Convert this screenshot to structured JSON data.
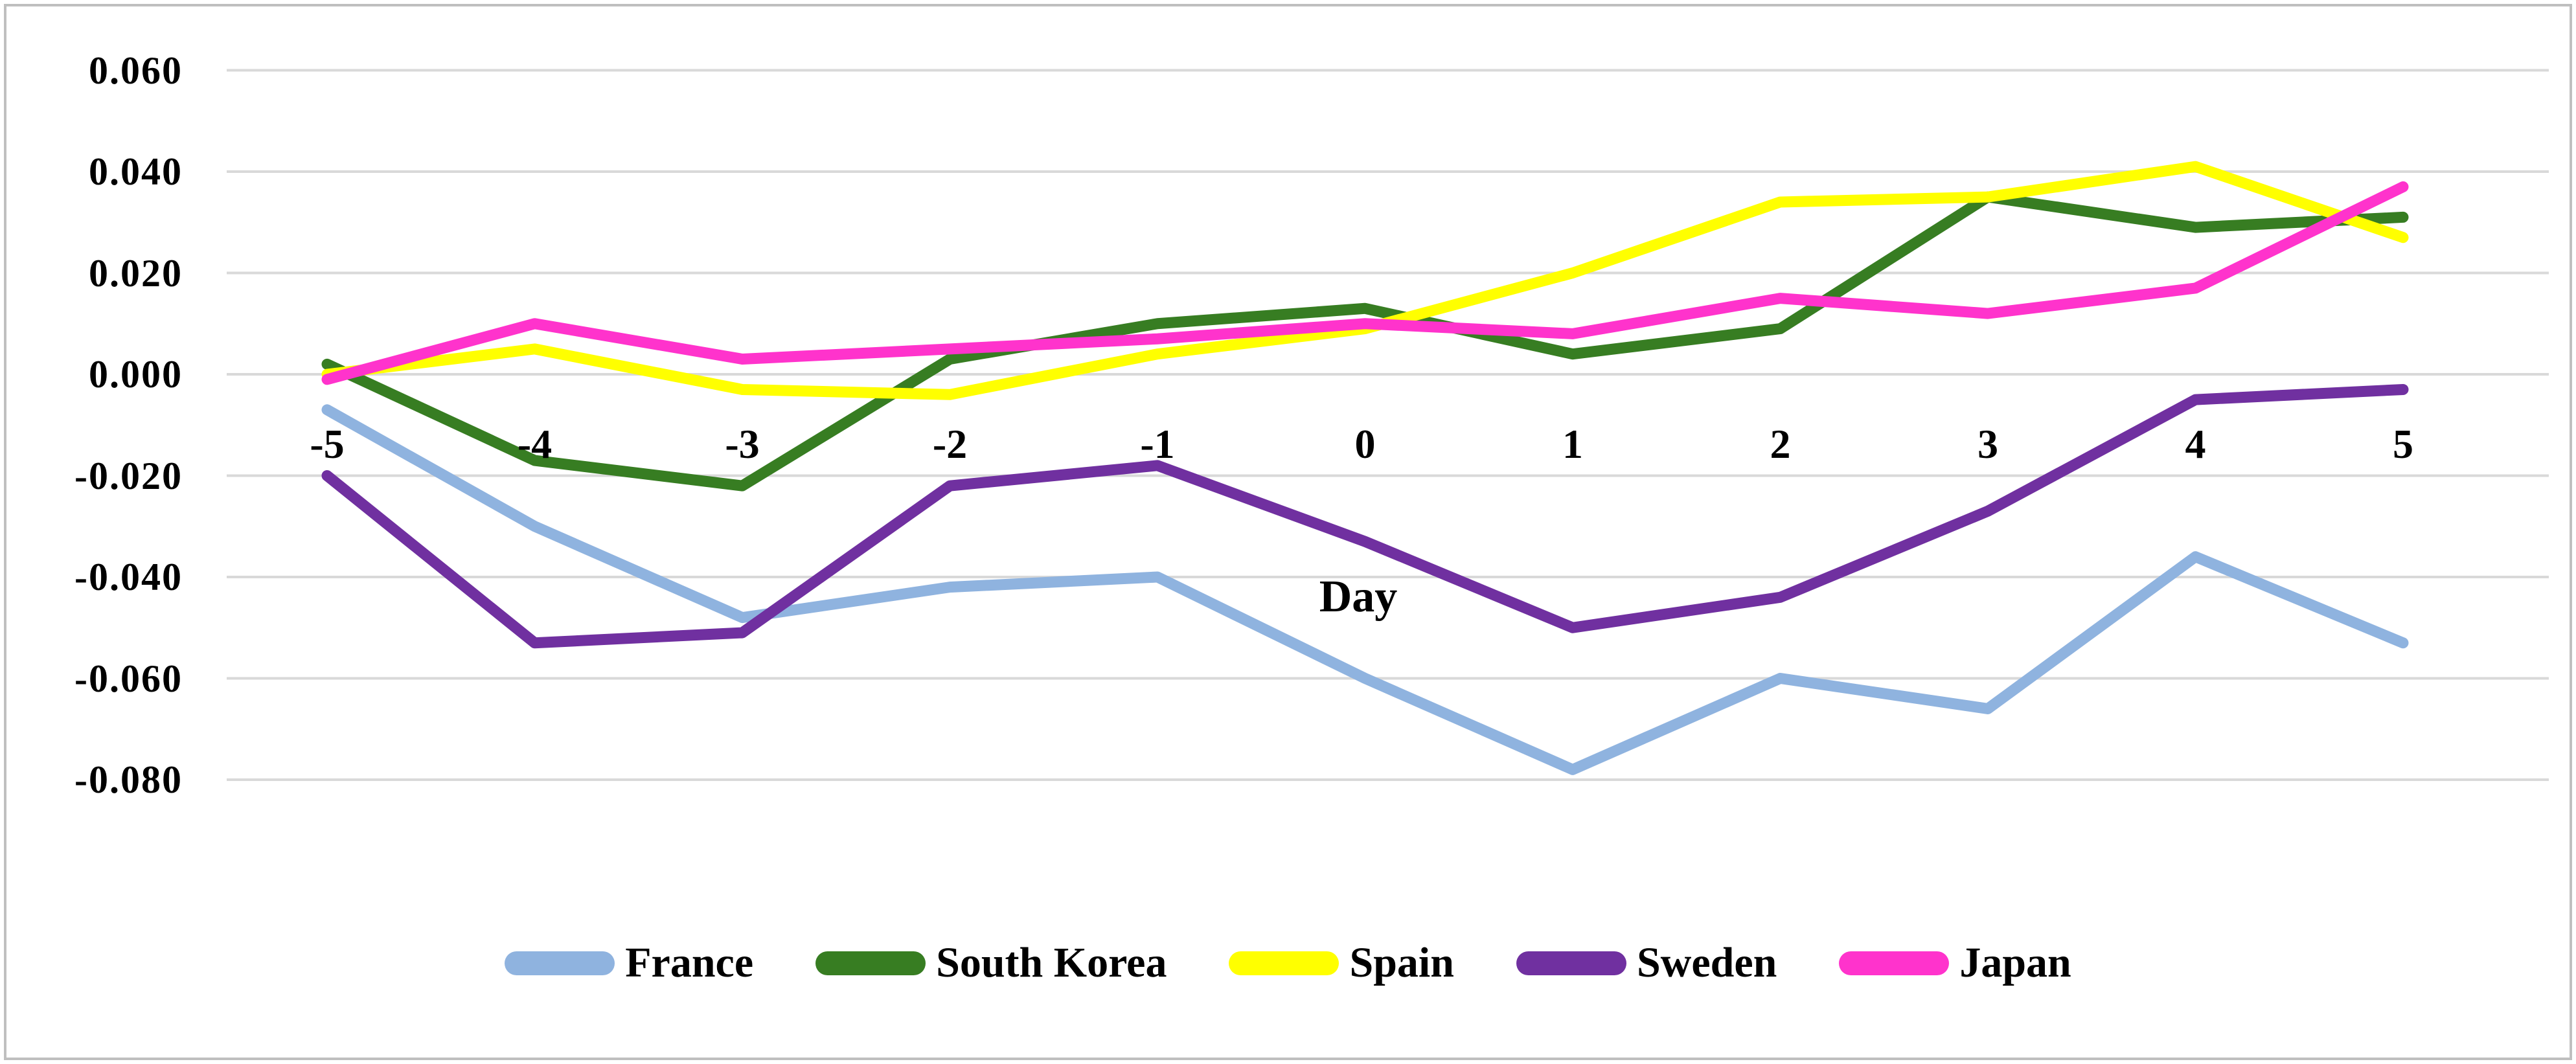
{
  "chart_data": {
    "type": "line",
    "title": "",
    "xlabel": "Day",
    "ylabel": "",
    "x": [
      -5,
      -4,
      -3,
      -2,
      -1,
      0,
      1,
      2,
      3,
      4,
      5
    ],
    "x_tick_labels": [
      "-5",
      "-4",
      "-3",
      "-2",
      "-1",
      "0",
      "1",
      "2",
      "3",
      "4",
      "5"
    ],
    "y_tick_labels": [
      "0.060",
      "0.040",
      "0.020",
      "0.000",
      "-0.020",
      "-0.040",
      "-0.060",
      "-0.080"
    ],
    "ylim": [
      -0.08,
      0.06
    ],
    "grid": true,
    "legend_position": "bottom",
    "series": [
      {
        "name": "France",
        "color": "#8FB3DF",
        "values": [
          -0.007,
          -0.03,
          -0.048,
          -0.042,
          -0.04,
          -0.06,
          -0.078,
          -0.06,
          -0.066,
          -0.036,
          -0.053
        ]
      },
      {
        "name": "South Korea",
        "color": "#377D22",
        "values": [
          0.002,
          -0.017,
          -0.022,
          0.003,
          0.01,
          0.013,
          0.004,
          0.009,
          0.035,
          0.029,
          0.031
        ]
      },
      {
        "name": "Spain",
        "color": "#FFFF00",
        "values": [
          0.0,
          0.005,
          -0.003,
          -0.004,
          0.004,
          0.009,
          0.02,
          0.034,
          0.035,
          0.041,
          0.027
        ]
      },
      {
        "name": "Sweden",
        "color": "#7030A0",
        "values": [
          -0.02,
          -0.053,
          -0.051,
          -0.022,
          -0.018,
          -0.033,
          -0.05,
          -0.044,
          -0.027,
          -0.005,
          -0.003
        ]
      },
      {
        "name": "Japan",
        "color": "#FF33CC",
        "values": [
          -0.001,
          0.01,
          0.003,
          0.005,
          0.007,
          0.01,
          0.008,
          0.015,
          0.012,
          0.017,
          0.037
        ]
      }
    ],
    "colors": {
      "gridline": "#D9D9D9",
      "frame_border": "#BFBFBF",
      "background": "#FFFFFF",
      "text": "#000000"
    }
  }
}
